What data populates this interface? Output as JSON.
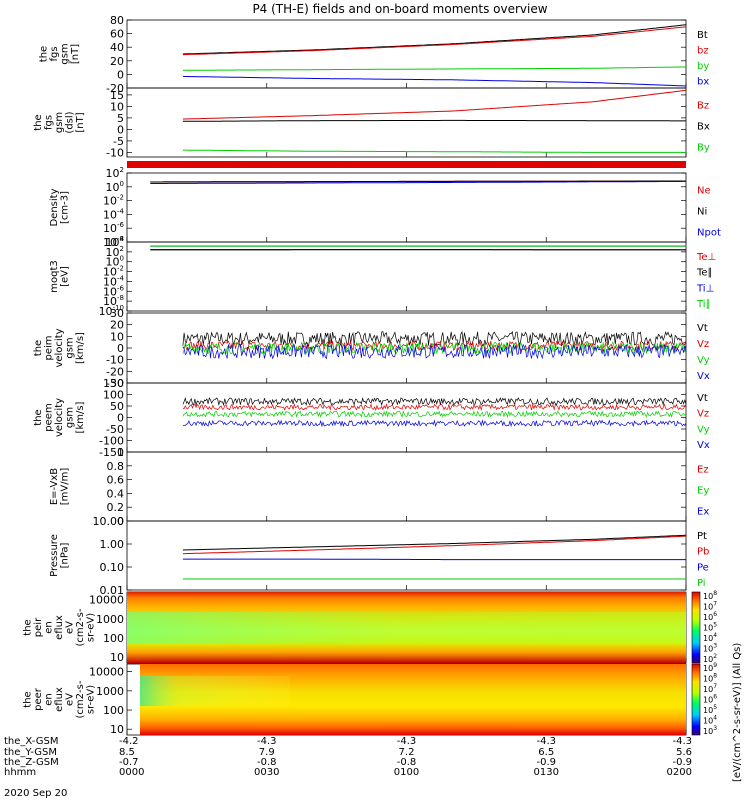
{
  "title": "P4 (TH-E) fields and on-board moments overview",
  "date_label": "2020 Sep 20",
  "colors": {
    "black": "#000000",
    "red": "#e00000",
    "green": "#00d000",
    "blue": "#0000e0"
  },
  "colorbar_label": "[eV/(cm^2-s-sr-eV)] (All Qs)",
  "chart_data": [
    {
      "type": "line",
      "panel": "fgs-gsm-total",
      "ylabel_lines": [
        "the",
        "fgs",
        "gsm",
        "[nT]"
      ],
      "ylim": [
        -20,
        80
      ],
      "yticks": [
        80,
        60,
        40,
        20,
        0,
        -20
      ],
      "grid": false,
      "x_range": [
        0,
        120
      ],
      "series": [
        {
          "name": "Bt",
          "color": "black",
          "x": [
            12,
            40,
            70,
            100,
            120
          ],
          "y": [
            30,
            36,
            45,
            58,
            73
          ]
        },
        {
          "name": "bz",
          "color": "red",
          "x": [
            12,
            40,
            70,
            100,
            120
          ],
          "y": [
            29,
            35,
            44,
            56,
            70
          ]
        },
        {
          "name": "by",
          "color": "green",
          "x": [
            12,
            40,
            70,
            100,
            120
          ],
          "y": [
            6,
            7,
            8,
            9,
            11
          ]
        },
        {
          "name": "bx",
          "color": "blue",
          "x": [
            12,
            40,
            70,
            100,
            120
          ],
          "y": [
            -3,
            -6,
            -8,
            -12,
            -17
          ]
        }
      ]
    },
    {
      "type": "line",
      "panel": "fgs-gsm-components",
      "ylabel_lines": [
        "the",
        "fgs",
        "gsm",
        "(dsl)",
        "[nT]"
      ],
      "ylim": [
        -12,
        18
      ],
      "yticks": [
        15,
        10,
        5,
        0,
        -5,
        -10
      ],
      "grid": false,
      "x_range": [
        0,
        120
      ],
      "series": [
        {
          "name": "Bz",
          "color": "red",
          "x": [
            12,
            40,
            70,
            100,
            120
          ],
          "y": [
            4.5,
            6,
            8,
            12,
            17
          ]
        },
        {
          "name": "Bx",
          "color": "black",
          "x": [
            12,
            40,
            70,
            100,
            120
          ],
          "y": [
            3.5,
            3.8,
            3.9,
            3.8,
            3.7
          ]
        },
        {
          "name": "By",
          "color": "green",
          "x": [
            12,
            40,
            70,
            100,
            120
          ],
          "y": [
            -9,
            -9.5,
            -9.7,
            -10,
            -10
          ]
        }
      ]
    },
    {
      "type": "line",
      "panel": "density",
      "yscale": "log",
      "ylabel_lines": [
        "Density",
        "[cm-3]"
      ],
      "ylim": [
        1e-08,
        100
      ],
      "yticks": [
        "10^2",
        "10^0",
        "10^-2",
        "10^-4",
        "10^-6",
        "10^-8"
      ],
      "grid": false,
      "x_range": [
        0,
        120
      ],
      "series": [
        {
          "name": "Ne",
          "color": "red",
          "x": [
            5,
            60,
            120
          ],
          "y": [
            5,
            6,
            7
          ]
        },
        {
          "name": "Ni",
          "color": "black",
          "x": [
            5,
            60,
            120
          ],
          "y": [
            5,
            6,
            7
          ]
        },
        {
          "name": "Npot",
          "color": "blue",
          "x": [
            5,
            60,
            120
          ],
          "y": [
            3,
            4,
            6
          ]
        }
      ]
    },
    {
      "type": "line",
      "panel": "moqt3",
      "yscale": "log",
      "ylabel_lines": [
        "moqt3",
        "[eV]"
      ],
      "ylim": [
        1e-10,
        10000
      ],
      "yticks": [
        "10^4",
        "10^2",
        "10^0",
        "10^-2",
        "10^-4",
        "10^-6",
        "10^-8",
        "10^-10"
      ],
      "grid": false,
      "x_range": [
        0,
        120
      ],
      "series": [
        {
          "name": "Te⊥",
          "color": "red",
          "x": [
            5,
            60,
            120
          ],
          "y": [
            300,
            300,
            280
          ]
        },
        {
          "name": "Te∥",
          "color": "black",
          "x": [
            5,
            60,
            120
          ],
          "y": [
            250,
            260,
            250
          ]
        },
        {
          "name": "Ti⊥",
          "color": "blue",
          "x": [
            5,
            60,
            120
          ],
          "y": [
            1500,
            1500,
            1500
          ]
        },
        {
          "name": "Ti∥",
          "color": "green",
          "x": [
            5,
            60,
            120
          ],
          "y": [
            1500,
            1500,
            1500
          ]
        }
      ]
    },
    {
      "type": "line",
      "panel": "peim-velocity",
      "noisy": true,
      "ylabel_lines": [
        "the",
        "peim",
        "velocity",
        "gsm",
        "[km/s]"
      ],
      "ylim": [
        -30,
        30
      ],
      "yticks": [
        30,
        20,
        10,
        0,
        -10,
        -20,
        -30
      ],
      "grid": false,
      "x_range": [
        0,
        120
      ],
      "series": [
        {
          "name": "Vt",
          "color": "black",
          "mean": 8,
          "amp": 6
        },
        {
          "name": "Vz",
          "color": "red",
          "mean": 2,
          "amp": 4
        },
        {
          "name": "Vy",
          "color": "green",
          "mean": 0,
          "amp": 5
        },
        {
          "name": "Vx",
          "color": "blue",
          "mean": -3,
          "amp": 6
        }
      ]
    },
    {
      "type": "line",
      "panel": "peem-velocity",
      "noisy": true,
      "ylabel_lines": [
        "the",
        "peem",
        "velocity",
        "gsm",
        "[km/s]"
      ],
      "ylim": [
        -150,
        150
      ],
      "yticks": [
        150,
        100,
        50,
        0,
        -50,
        -100,
        -150
      ],
      "grid": false,
      "x_range": [
        0,
        120
      ],
      "series": [
        {
          "name": "Vt",
          "color": "black",
          "mean": 70,
          "amp": 15
        },
        {
          "name": "Vz",
          "color": "red",
          "mean": 45,
          "amp": 12
        },
        {
          "name": "Vy",
          "color": "green",
          "mean": 15,
          "amp": 12
        },
        {
          "name": "Vx",
          "color": "blue",
          "mean": -25,
          "amp": 12
        }
      ]
    },
    {
      "type": "line",
      "panel": "electric-field",
      "ylabel_lines": [
        "E=-VxB",
        "[mV/m]"
      ],
      "ylim": [
        0,
        1
      ],
      "yticks": [
        1.0,
        0.8,
        0.6,
        0.4,
        0.2,
        0.0
      ],
      "grid": false,
      "x_range": [
        0,
        120
      ],
      "series": [
        {
          "name": "Ez",
          "color": "red",
          "x": [],
          "y": []
        },
        {
          "name": "Ey",
          "color": "green",
          "x": [],
          "y": []
        },
        {
          "name": "Ex",
          "color": "blue",
          "x": [],
          "y": []
        }
      ]
    },
    {
      "type": "line",
      "panel": "pressure",
      "yscale": "log",
      "ylabel_lines": [
        "Pressure",
        "[nPa]"
      ],
      "ylim": [
        0.01,
        10
      ],
      "yticks": [
        "10.00",
        "1.00",
        "0.10",
        "0.01"
      ],
      "grid": false,
      "x_range": [
        0,
        120
      ],
      "series": [
        {
          "name": "Pt",
          "color": "black",
          "x": [
            12,
            40,
            70,
            100,
            120
          ],
          "y": [
            0.55,
            0.75,
            1.05,
            1.6,
            2.4
          ]
        },
        {
          "name": "Pb",
          "color": "red",
          "x": [
            12,
            40,
            70,
            100,
            120
          ],
          "y": [
            0.38,
            0.55,
            0.85,
            1.4,
            2.2
          ]
        },
        {
          "name": "Pe",
          "color": "blue",
          "x": [
            12,
            40,
            70,
            100,
            120
          ],
          "y": [
            0.22,
            0.22,
            0.21,
            0.21,
            0.21
          ]
        },
        {
          "name": "Pi",
          "color": "green",
          "x": [
            12,
            40,
            70,
            100,
            120
          ],
          "y": [
            0.03,
            0.03,
            0.03,
            0.03,
            0.03
          ]
        }
      ]
    },
    {
      "type": "heatmap",
      "panel": "peir-energy-flux",
      "ylabel_lines": [
        "the",
        "peir",
        "en",
        "eflux",
        "eV",
        "(cm2-s-",
        "sr-eV)"
      ],
      "yscale": "log",
      "ylim": [
        5,
        25000
      ],
      "yticks": [
        "10000",
        "1000",
        "100",
        "10"
      ],
      "colorbar": {
        "scale": "log",
        "ticks": [
          "10^8",
          "10^7",
          "10^6",
          "10^5",
          "10^4",
          "10^3",
          "10^2"
        ]
      }
    },
    {
      "type": "heatmap",
      "panel": "peer-energy-flux",
      "ylabel_lines": [
        "the",
        "peer",
        "en",
        "eflux",
        "eV",
        "(cm2-s-",
        "sr-eV)"
      ],
      "yscale": "log",
      "ylim": [
        5,
        25000
      ],
      "yticks": [
        "10000",
        "1000",
        "100",
        "10"
      ],
      "colorbar": {
        "scale": "log",
        "ticks": [
          "10^9",
          "10^8",
          "10^7",
          "10^6",
          "10^5",
          "10^4",
          "10^3"
        ]
      }
    }
  ],
  "x_axis": {
    "row_labels": [
      "the_X-GSM",
      "the_Y-GSM",
      "the_Z-GSM",
      "hhmm"
    ],
    "ticks": [
      {
        "x": 0,
        "values": [
          "-4.2",
          "8.5",
          "-0.7",
          "0000"
        ]
      },
      {
        "x": 30,
        "values": [
          "-4.3",
          "7.9",
          "-0.8",
          "0030"
        ]
      },
      {
        "x": 60,
        "values": [
          "-4.3",
          "7.2",
          "-0.8",
          "0100"
        ]
      },
      {
        "x": 90,
        "values": [
          "-4.3",
          "6.5",
          "-0.9",
          "0130"
        ]
      },
      {
        "x": 120,
        "values": [
          "-4.3",
          "5.6",
          "-0.9",
          "0200"
        ]
      }
    ]
  }
}
